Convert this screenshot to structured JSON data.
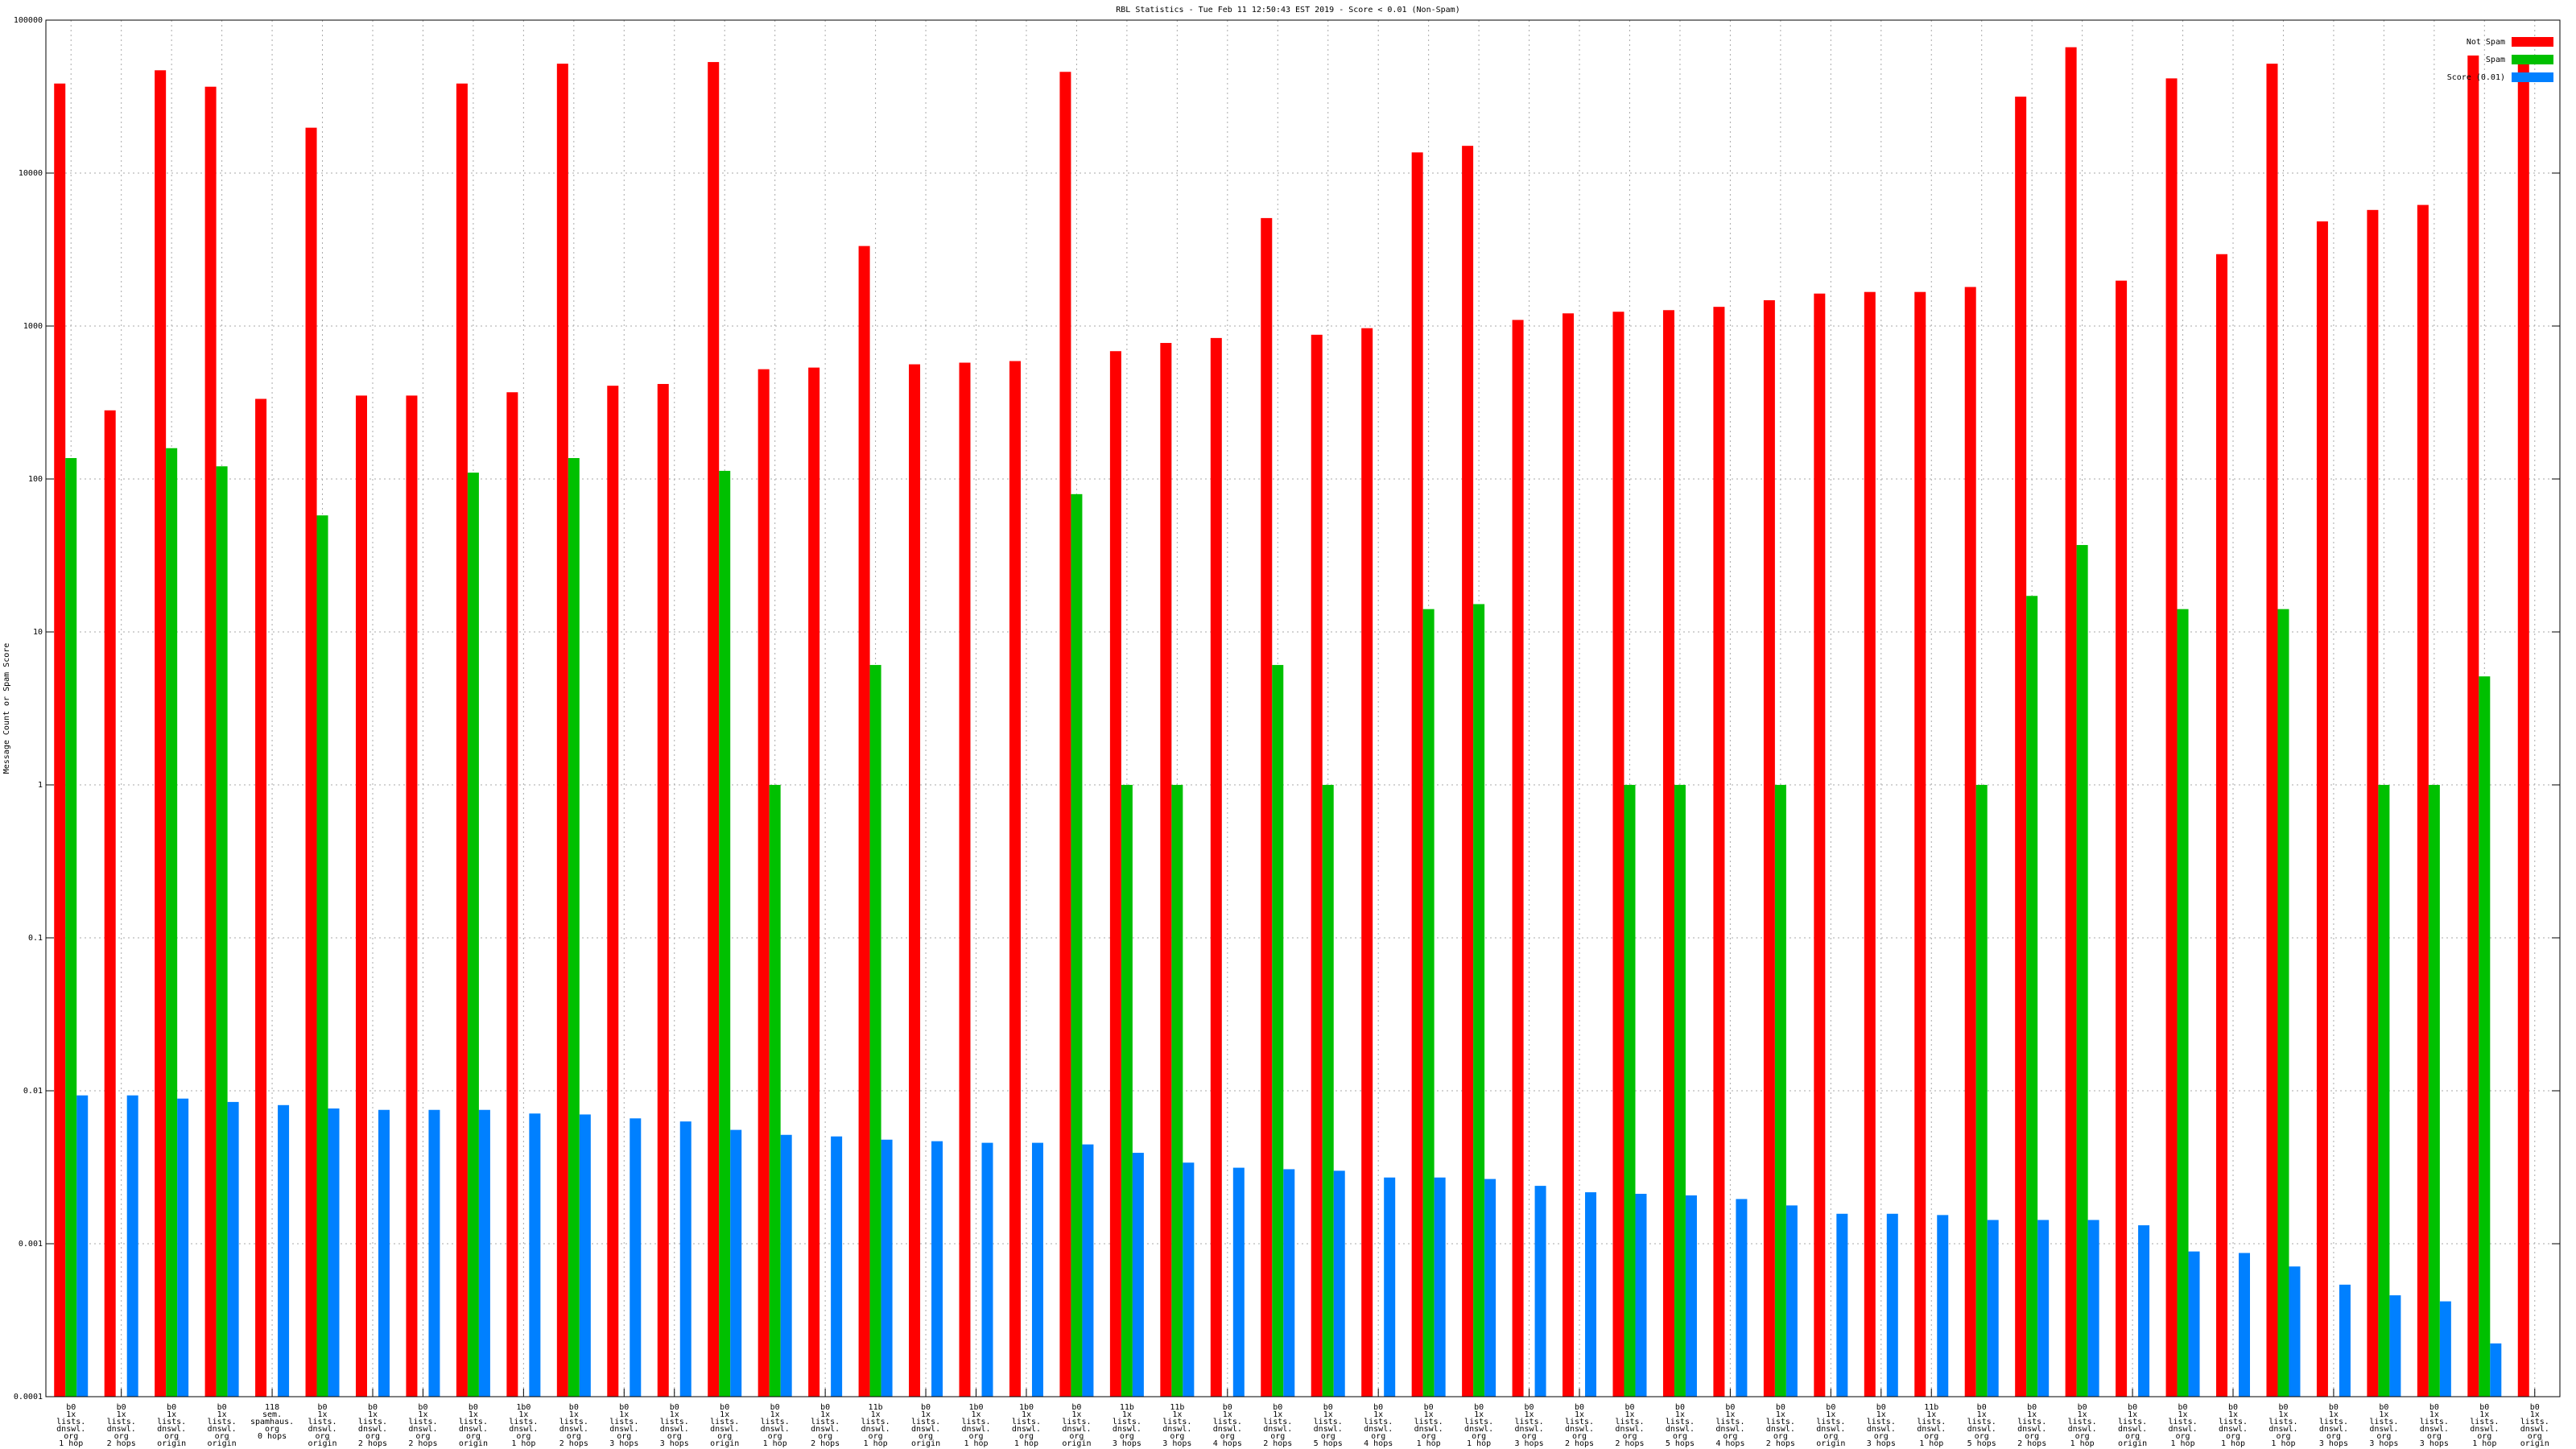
{
  "chart_data": {
    "type": "bar",
    "title": "RBL Statistics - Tue Feb 11 12:50:43 EST 2019 - Score < 0.01 (Non-Spam)",
    "y_label": "Message Count or Spam Score",
    "log_y": true,
    "grid": true,
    "legend": "top-right",
    "ylim": [
      0.0001,
      100000
    ],
    "yticks": [
      0.0001,
      0.001,
      0.01,
      0.1,
      1,
      10,
      100,
      1000,
      10000,
      100000
    ],
    "categories": [
      "b0\n1x\nlists.\ndnswl.\norg\n1 hop",
      "b0\n1x\nlists.\ndnswl.\norg\n2 hops",
      "b0\n1x\nlists.\ndnswl.\norg\norigin",
      "b0\n1x\nlists.\ndnswl.\norg\norigin",
      "118\nsem.\nspamhaus.\norg\n0 hops",
      "b0\n1x\nlists.\ndnswl.\norg\norigin",
      "b0\n1x\nlists.\ndnswl.\norg\n2 hops",
      "b0\n1x\nlists.\ndnswl.\norg\n2 hops",
      "b0\n1x\nlists.\ndnswl.\norg\norigin",
      "1b0\n1x\nlists.\ndnswl.\norg\n1 hop",
      "b0\n1x\nlists.\ndnswl.\norg\n2 hops",
      "b0\n1x\nlists.\ndnswl.\norg\n3 hops",
      "b0\n1x\nlists.\ndnswl.\norg\n3 hops",
      "b0\n1x\nlists.\ndnswl.\norg\norigin",
      "b0\n1x\nlists.\ndnswl.\norg\n1 hop",
      "b0\n1x\nlists.\ndnswl.\norg\n2 hops",
      "11b\n1x\nlists.\ndnswl.\norg\n1 hop",
      "b0\n1x\nlists.\ndnswl.\norg\norigin",
      "1b0\n1x\nlists.\ndnswl.\norg\n1 hop",
      "1b0\n1x\nlists.\ndnswl.\norg\n1 hop",
      "b0\n1x\nlists.\ndnswl.\norg\norigin",
      "11b\n1x\nlists.\ndnswl.\norg\n3 hops",
      "11b\n1x\nlists.\ndnswl.\norg\n3 hops",
      "b0\n1x\nlists.\ndnswl.\norg\n4 hops",
      "b0\n1x\nlists.\ndnswl.\norg\n2 hops",
      "b0\n1x\nlists.\ndnswl.\norg\n5 hops",
      "b0\n1x\nlists.\ndnswl.\norg\n4 hops",
      "b0\n1x\nlists.\ndnswl.\norg\n1 hop",
      "b0\n1x\nlists.\ndnswl.\norg\n1 hop",
      "b0\n1x\nlists.\ndnswl.\norg\n3 hops",
      "b0\n1x\nlists.\ndnswl.\norg\n2 hops",
      "b0\n1x\nlists.\ndnswl.\norg\n2 hops",
      "b0\n1x\nlists.\ndnswl.\norg\n5 hops",
      "b0\n1x\nlists.\ndnswl.\norg\n4 hops",
      "b0\n1x\nlists.\ndnswl.\norg\n2 hops",
      "b0\n1x\nlists.\ndnswl.\norg\norigin",
      "b0\n1x\nlists.\ndnswl.\norg\n3 hops",
      "11b\n1x\nlists.\ndnswl.\norg\n1 hop",
      "b0\n1x\nlists.\ndnswl.\norg\n5 hops",
      "b0\n1x\nlists.\ndnswl.\norg\n2 hops",
      "b0\n1x\nlists.\ndnswl.\norg\n1 hop",
      "b0\n1x\nlists.\ndnswl.\norg\norigin",
      "b0\n1x\nlists.\ndnswl.\norg\n1 hop",
      "b0\n1x\nlists.\ndnswl.\norg\n1 hop",
      "b0\n1x\nlists.\ndnswl.\norg\n1 hop",
      "b0\n1x\nlists.\ndnswl.\norg\n3 hops",
      "b0\n1x\nlists.\ndnswl.\norg\n3 hops",
      "b0\n1x\nlists.\ndnswl.\norg\n3 hops",
      "b0\n1x\nlists.\ndnswl.\norg\n1 hop",
      "b0\n1x\nlists.\ndnswl.\norg\norigin"
    ],
    "series": [
      {
        "name": "Not Spam",
        "color": "#ff0000",
        "values": [
          38500,
          281,
          47000,
          36700,
          334,
          19800,
          351,
          351,
          38500,
          369,
          51900,
          407,
          418,
          53200,
          522,
          535,
          3335,
          562,
          576,
          590,
          45900,
          685,
          775,
          835,
          5080,
          877,
          968,
          13650,
          15070,
          1096,
          1210,
          1240,
          1270,
          1335,
          1475,
          1630,
          1670,
          1670,
          1800,
          31600,
          66500,
          1980,
          41600,
          2950,
          51900,
          4830,
          5740,
          6190,
          58700,
          55900
        ]
      },
      {
        "name": "Spam",
        "color": "#00c000",
        "values": [
          137,
          null,
          159,
          121,
          null,
          57.8,
          null,
          null,
          110,
          null,
          137,
          null,
          null,
          113,
          1,
          null,
          6.08,
          null,
          null,
          null,
          79.6,
          1,
          1,
          null,
          6.08,
          1,
          null,
          14.1,
          15.2,
          null,
          null,
          1,
          1,
          null,
          1,
          null,
          null,
          null,
          1,
          17.2,
          37,
          null,
          14.1,
          null,
          14.1,
          null,
          1,
          1,
          5.12,
          null
        ]
      },
      {
        "name": "Score (0.01)",
        "color": "#0080ff",
        "values": [
          0.00933,
          0.00933,
          0.00889,
          0.00845,
          0.00806,
          0.00766,
          0.0075,
          0.0075,
          0.0075,
          0.0071,
          0.007,
          0.0066,
          0.0063,
          0.00555,
          0.00515,
          0.00503,
          0.00479,
          0.00468,
          0.00457,
          0.00457,
          0.00446,
          0.00393,
          0.00339,
          0.00314,
          0.00307,
          0.003,
          0.00271,
          0.00271,
          0.00265,
          0.00239,
          0.00217,
          0.00212,
          0.00207,
          0.00196,
          0.00178,
          0.00157,
          0.00157,
          0.00154,
          0.00143,
          0.00143,
          0.00143,
          0.00132,
          0.00089,
          0.00087,
          0.00071,
          0.00054,
          0.00046,
          0.00042,
          0.000223,
          null
        ]
      }
    ]
  }
}
